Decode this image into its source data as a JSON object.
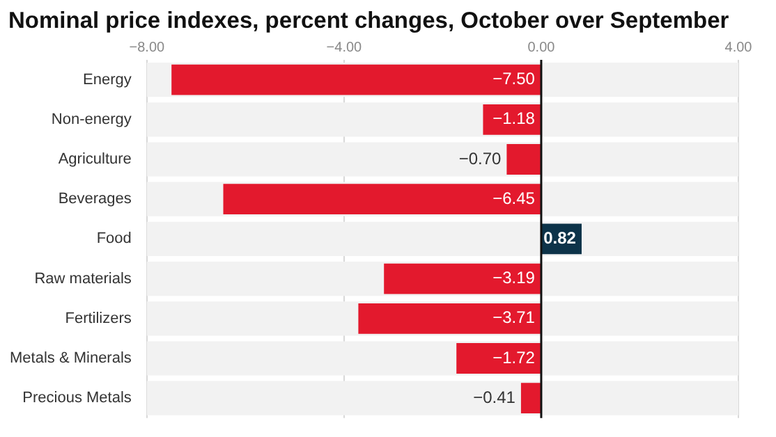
{
  "chart_data": {
    "type": "bar",
    "orientation": "horizontal",
    "title": "Nominal price indexes, percent changes, October over September",
    "categories": [
      "Energy",
      "Non-energy",
      "Agriculture",
      "Beverages",
      "Food",
      "Raw materials",
      "Fertilizers",
      "Metals & Minerals",
      "Precious Metals"
    ],
    "values": [
      -7.5,
      -1.18,
      -0.7,
      -6.45,
      0.82,
      -3.19,
      -3.71,
      -1.72,
      -0.41
    ],
    "colors": [
      "#e3192d",
      "#e3192d",
      "#e3192d",
      "#e3192d",
      "#0d3349",
      "#e3192d",
      "#e3192d",
      "#e3192d",
      "#e3192d"
    ],
    "value_labels": [
      "−7.50",
      "−1.18",
      "−0.70",
      "−6.45",
      "0.82",
      "−3.19",
      "−3.71",
      "−1.72",
      "−0.41"
    ],
    "xlim": [
      -8,
      4
    ],
    "xticks": [
      {
        "value": -8,
        "label": "−8.00"
      },
      {
        "value": -4,
        "label": "−4.00"
      },
      {
        "value": 0,
        "label": "0.00"
      },
      {
        "value": 4,
        "label": "4.00"
      }
    ],
    "grid": "x",
    "legend": false
  }
}
